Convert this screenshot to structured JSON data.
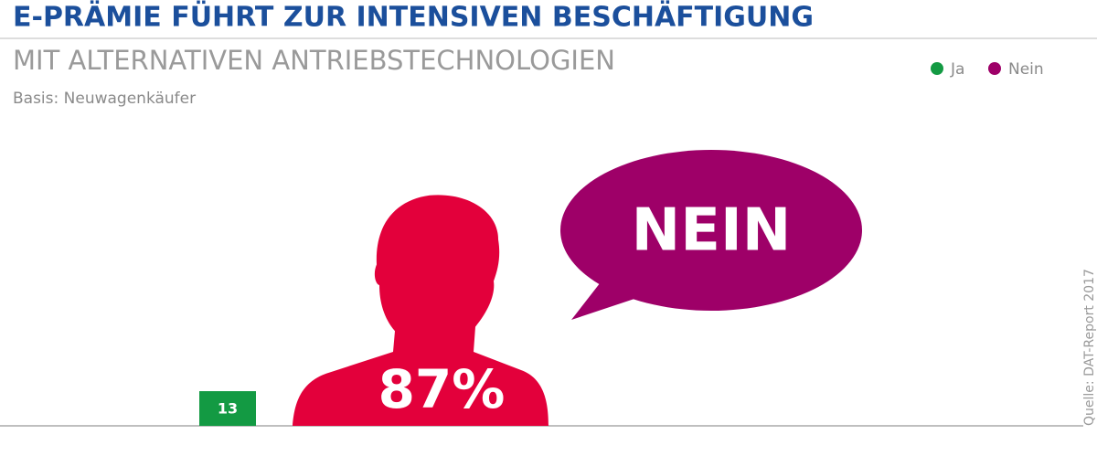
{
  "chart_data": {
    "type": "bar",
    "title": "E-PRÄMIE FÜHRT ZUR INTENSIVEN BESCHÄFTIGUNG",
    "subtitle": "MIT ALTERNATIVEN ANTRIEBSTECHNOLOGIEN",
    "note": "Basis: Neuwagenkäufer",
    "annotation": "NEIN",
    "source": "Quelle: DAT-Report 2017",
    "categories": [
      "Ja",
      "Nein"
    ],
    "values": [
      13,
      87
    ],
    "value_labels": [
      "13",
      "87%"
    ],
    "colors": [
      "#139a43",
      "#9e0068"
    ],
    "mark_colors": [
      "#139a43",
      "#e3003b"
    ],
    "mark_shapes": [
      "bar",
      "person"
    ],
    "ylim": [
      0,
      100
    ],
    "legend": "top-right"
  }
}
